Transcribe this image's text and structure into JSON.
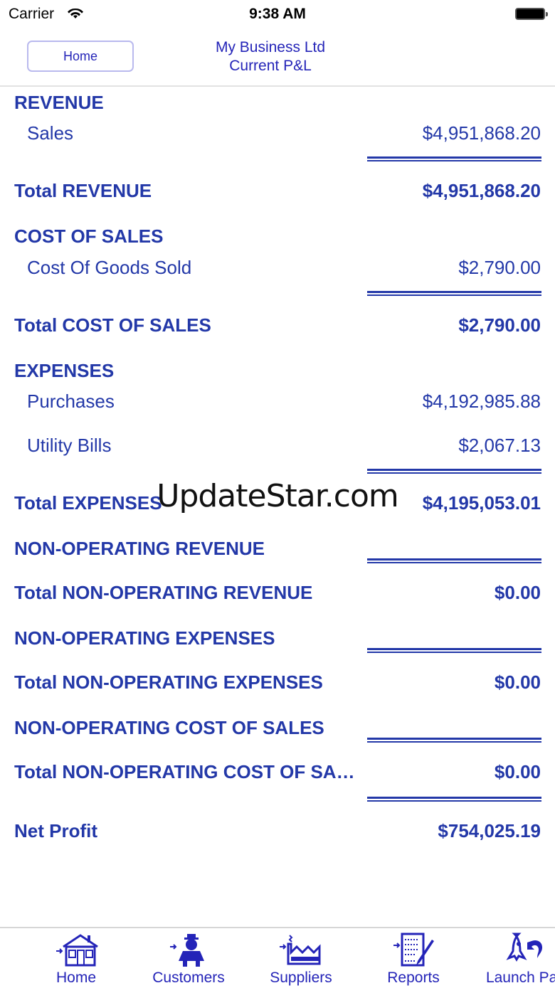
{
  "status": {
    "carrier": "Carrier",
    "time": "9:38 AM"
  },
  "nav": {
    "home_button": "Home",
    "title_line1": "My Business Ltd",
    "title_line2": "Current P&L"
  },
  "report": [
    {
      "type": "section",
      "label": "REVENUE"
    },
    {
      "type": "item",
      "label": "Sales",
      "amount": "$4,951,868.20"
    },
    {
      "type": "total",
      "label": "Total REVENUE",
      "amount": "$4,951,868.20"
    },
    {
      "type": "section",
      "label": "COST OF SALES"
    },
    {
      "type": "item",
      "label": "Cost Of Goods Sold",
      "amount": "$2,790.00"
    },
    {
      "type": "total",
      "label": "Total COST OF SALES",
      "amount": "$2,790.00"
    },
    {
      "type": "section",
      "label": "EXPENSES"
    },
    {
      "type": "item",
      "label": "Purchases",
      "amount": "$4,192,985.88"
    },
    {
      "type": "item",
      "label": "Utility Bills",
      "amount": "$2,067.13"
    },
    {
      "type": "total",
      "label": "Total EXPENSES",
      "amount": "$4,195,053.01"
    },
    {
      "type": "section",
      "label": "NON-OPERATING REVENUE"
    },
    {
      "type": "total",
      "label": "Total NON-OPERATING REVENUE",
      "amount": "$0.00"
    },
    {
      "type": "section",
      "label": "NON-OPERATING EXPENSES"
    },
    {
      "type": "total",
      "label": "Total NON-OPERATING EXPENSES",
      "amount": "$0.00"
    },
    {
      "type": "section",
      "label": "NON-OPERATING COST OF SALES"
    },
    {
      "type": "total",
      "label": "Total NON-OPERATING COST OF SALES",
      "amount": "$0.00"
    },
    {
      "type": "total",
      "label": "Net Profit",
      "amount": "$754,025.19"
    }
  ],
  "watermark": "UpdateStar.com",
  "tabs": [
    {
      "label": "Home",
      "icon": "house-icon"
    },
    {
      "label": "Customers",
      "icon": "customer-person-icon"
    },
    {
      "label": "Suppliers",
      "icon": "factory-icon"
    },
    {
      "label": "Reports",
      "icon": "report-pencil-icon"
    },
    {
      "label": "Launch Pad",
      "icon": "rocket-icon"
    }
  ],
  "colors": {
    "text": "#2338a8",
    "nav_text": "#2424b8"
  }
}
